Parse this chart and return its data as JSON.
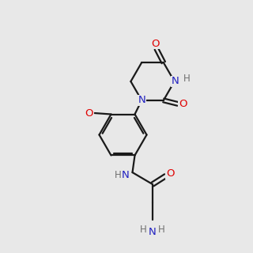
{
  "background_color": "#e8e8e8",
  "bond_color": "#1a1a1a",
  "atom_colors": {
    "N": "#2020c0",
    "O": "#e00000",
    "H": "#707070",
    "C": "#1a1a1a"
  }
}
